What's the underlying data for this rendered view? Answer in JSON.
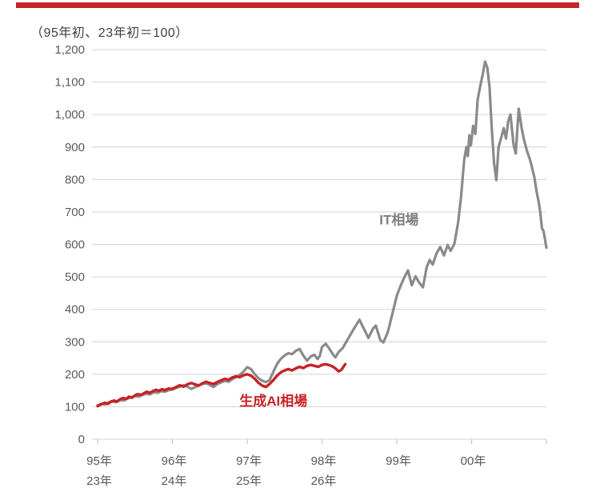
{
  "page": {
    "top_bar_color": "#c2262a",
    "subtitle": "（95年初、23年初＝100）"
  },
  "chart_data": {
    "type": "line",
    "title": "",
    "subtitle": "（95年初、23年初＝100）",
    "grid": true,
    "grid_color": "#d9d9d9",
    "tick_color": "#c6c6c6",
    "legend_position": "inline-annotations",
    "x_axis": {
      "max_t": 6,
      "tick_positions": [
        0,
        1,
        2,
        3,
        4,
        5,
        6
      ],
      "labels_row1": [
        {
          "t": 0,
          "text": "95年"
        },
        {
          "t": 1,
          "text": "96年"
        },
        {
          "t": 2,
          "text": "97年"
        },
        {
          "t": 3,
          "text": "98年"
        },
        {
          "t": 4,
          "text": "99年"
        },
        {
          "t": 5,
          "text": "00年"
        }
      ],
      "labels_row2": [
        {
          "t": 0,
          "text": "23年"
        },
        {
          "t": 1,
          "text": "24年"
        },
        {
          "t": 2,
          "text": "25年"
        },
        {
          "t": 3,
          "text": "26年"
        }
      ]
    },
    "y_axis": {
      "min": 0,
      "max": 1200,
      "step": 100,
      "ticks": [
        {
          "v": 0,
          "label": "0"
        },
        {
          "v": 100,
          "label": "100"
        },
        {
          "v": 200,
          "label": "200"
        },
        {
          "v": 300,
          "label": "300"
        },
        {
          "v": 400,
          "label": "400"
        },
        {
          "v": 500,
          "label": "500"
        },
        {
          "v": 600,
          "label": "600"
        },
        {
          "v": 700,
          "label": "700"
        },
        {
          "v": 800,
          "label": "800"
        },
        {
          "v": 900,
          "label": "900"
        },
        {
          "v": 1000,
          "label": "1,000"
        },
        {
          "v": 1100,
          "label": "1,100"
        },
        {
          "v": 1200,
          "label": "1,200"
        }
      ]
    },
    "series": [
      {
        "id": "it",
        "name": "IT相場",
        "color": "#8a8a8a",
        "label_color": "#7f7f7f",
        "stroke_width": 3.2,
        "label_anchor": {
          "t": 4.03,
          "v": 662
        },
        "points": [
          [
            0,
            104
          ],
          [
            0.05,
            109
          ],
          [
            0.1,
            107
          ],
          [
            0.15,
            113
          ],
          [
            0.2,
            116
          ],
          [
            0.25,
            114
          ],
          [
            0.3,
            121
          ],
          [
            0.35,
            119
          ],
          [
            0.4,
            125
          ],
          [
            0.45,
            129
          ],
          [
            0.5,
            133
          ],
          [
            0.55,
            131
          ],
          [
            0.6,
            137
          ],
          [
            0.65,
            140
          ],
          [
            0.7,
            138
          ],
          [
            0.75,
            145
          ],
          [
            0.8,
            143
          ],
          [
            0.85,
            148
          ],
          [
            0.9,
            146
          ],
          [
            0.95,
            151
          ],
          [
            1,
            153
          ],
          [
            1.05,
            158
          ],
          [
            1.1,
            162
          ],
          [
            1.15,
            166
          ],
          [
            1.2,
            162
          ],
          [
            1.25,
            155
          ],
          [
            1.3,
            160
          ],
          [
            1.35,
            165
          ],
          [
            1.4,
            170
          ],
          [
            1.45,
            173
          ],
          [
            1.5,
            167
          ],
          [
            1.55,
            161
          ],
          [
            1.6,
            170
          ],
          [
            1.65,
            175
          ],
          [
            1.7,
            180
          ],
          [
            1.75,
            177
          ],
          [
            1.8,
            185
          ],
          [
            1.85,
            191
          ],
          [
            1.9,
            198
          ],
          [
            1.95,
            208
          ],
          [
            2,
            222
          ],
          [
            2.05,
            216
          ],
          [
            2.1,
            200
          ],
          [
            2.15,
            188
          ],
          [
            2.2,
            180
          ],
          [
            2.25,
            176
          ],
          [
            2.3,
            182
          ],
          [
            2.35,
            208
          ],
          [
            2.4,
            232
          ],
          [
            2.45,
            248
          ],
          [
            2.5,
            258
          ],
          [
            2.55,
            265
          ],
          [
            2.6,
            262
          ],
          [
            2.65,
            272
          ],
          [
            2.7,
            278
          ],
          [
            2.75,
            258
          ],
          [
            2.8,
            242
          ],
          [
            2.85,
            255
          ],
          [
            2.9,
            260
          ],
          [
            2.94,
            247
          ],
          [
            2.97,
            256
          ],
          [
            3,
            284
          ],
          [
            3.05,
            294
          ],
          [
            3.1,
            278
          ],
          [
            3.15,
            260
          ],
          [
            3.18,
            252
          ],
          [
            3.22,
            268
          ],
          [
            3.28,
            282
          ],
          [
            3.35,
            310
          ],
          [
            3.42,
            338
          ],
          [
            3.5,
            368
          ],
          [
            3.55,
            345
          ],
          [
            3.62,
            312
          ],
          [
            3.68,
            340
          ],
          [
            3.72,
            350
          ],
          [
            3.78,
            305
          ],
          [
            3.82,
            298
          ],
          [
            3.88,
            330
          ],
          [
            3.95,
            395
          ],
          [
            4,
            442
          ],
          [
            4.05,
            472
          ],
          [
            4.1,
            498
          ],
          [
            4.15,
            520
          ],
          [
            4.2,
            474
          ],
          [
            4.25,
            502
          ],
          [
            4.3,
            482
          ],
          [
            4.35,
            468
          ],
          [
            4.4,
            530
          ],
          [
            4.44,
            552
          ],
          [
            4.48,
            538
          ],
          [
            4.53,
            572
          ],
          [
            4.58,
            592
          ],
          [
            4.63,
            566
          ],
          [
            4.68,
            598
          ],
          [
            4.72,
            580
          ],
          [
            4.77,
            602
          ],
          [
            4.82,
            668
          ],
          [
            4.86,
            748
          ],
          [
            4.9,
            860
          ],
          [
            4.93,
            900
          ],
          [
            4.95,
            872
          ],
          [
            4.97,
            936
          ],
          [
            4.99,
            905
          ],
          [
            5.02,
            965
          ],
          [
            5.05,
            940
          ],
          [
            5.08,
            1045
          ],
          [
            5.12,
            1092
          ],
          [
            5.15,
            1125
          ],
          [
            5.18,
            1163
          ],
          [
            5.21,
            1145
          ],
          [
            5.24,
            1085
          ],
          [
            5.27,
            958
          ],
          [
            5.3,
            852
          ],
          [
            5.33,
            798
          ],
          [
            5.36,
            900
          ],
          [
            5.4,
            932
          ],
          [
            5.43,
            958
          ],
          [
            5.46,
            926
          ],
          [
            5.49,
            980
          ],
          [
            5.52,
            1000
          ],
          [
            5.56,
            908
          ],
          [
            5.59,
            880
          ],
          [
            5.63,
            1018
          ],
          [
            5.67,
            958
          ],
          [
            5.7,
            922
          ],
          [
            5.74,
            888
          ],
          [
            5.78,
            862
          ],
          [
            5.81,
            835
          ],
          [
            5.84,
            806
          ],
          [
            5.87,
            762
          ],
          [
            5.9,
            728
          ],
          [
            5.92,
            695
          ],
          [
            5.94,
            650
          ],
          [
            5.96,
            642
          ],
          [
            5.98,
            618
          ],
          [
            6,
            590
          ]
        ]
      },
      {
        "id": "genai",
        "name": "生成AI相場",
        "color": "#c82227",
        "label_color": "#c82227",
        "stroke_width": 3.4,
        "label_anchor": {
          "t": 2.35,
          "v": 103
        },
        "points": [
          [
            0,
            102
          ],
          [
            0.05,
            108
          ],
          [
            0.1,
            112
          ],
          [
            0.14,
            109
          ],
          [
            0.18,
            116
          ],
          [
            0.22,
            119
          ],
          [
            0.26,
            116
          ],
          [
            0.3,
            123
          ],
          [
            0.34,
            127
          ],
          [
            0.38,
            124
          ],
          [
            0.42,
            131
          ],
          [
            0.46,
            128
          ],
          [
            0.5,
            135
          ],
          [
            0.54,
            139
          ],
          [
            0.58,
            136
          ],
          [
            0.62,
            142
          ],
          [
            0.66,
            146
          ],
          [
            0.7,
            143
          ],
          [
            0.74,
            148
          ],
          [
            0.78,
            152
          ],
          [
            0.82,
            149
          ],
          [
            0.86,
            154
          ],
          [
            0.9,
            151
          ],
          [
            0.95,
            156
          ],
          [
            1,
            155
          ],
          [
            1.05,
            161
          ],
          [
            1.1,
            166
          ],
          [
            1.15,
            162
          ],
          [
            1.2,
            169
          ],
          [
            1.25,
            173
          ],
          [
            1.3,
            169
          ],
          [
            1.35,
            165
          ],
          [
            1.4,
            172
          ],
          [
            1.45,
            177
          ],
          [
            1.5,
            173
          ],
          [
            1.55,
            170
          ],
          [
            1.6,
            176
          ],
          [
            1.65,
            181
          ],
          [
            1.7,
            186
          ],
          [
            1.75,
            183
          ],
          [
            1.8,
            190
          ],
          [
            1.85,
            194
          ],
          [
            1.9,
            191
          ],
          [
            1.95,
            197
          ],
          [
            2,
            200
          ],
          [
            2.05,
            196
          ],
          [
            2.1,
            186
          ],
          [
            2.15,
            174
          ],
          [
            2.2,
            165
          ],
          [
            2.25,
            161
          ],
          [
            2.3,
            170
          ],
          [
            2.35,
            182
          ],
          [
            2.4,
            196
          ],
          [
            2.45,
            206
          ],
          [
            2.5,
            212
          ],
          [
            2.55,
            216
          ],
          [
            2.6,
            212
          ],
          [
            2.65,
            218
          ],
          [
            2.7,
            223
          ],
          [
            2.75,
            219
          ],
          [
            2.8,
            226
          ],
          [
            2.85,
            229
          ],
          [
            2.9,
            226
          ],
          [
            2.95,
            223
          ],
          [
            3,
            229
          ],
          [
            3.05,
            231
          ],
          [
            3.1,
            228
          ],
          [
            3.14,
            224
          ],
          [
            3.18,
            218
          ],
          [
            3.22,
            209
          ],
          [
            3.26,
            214
          ],
          [
            3.31,
            231
          ]
        ]
      }
    ]
  }
}
